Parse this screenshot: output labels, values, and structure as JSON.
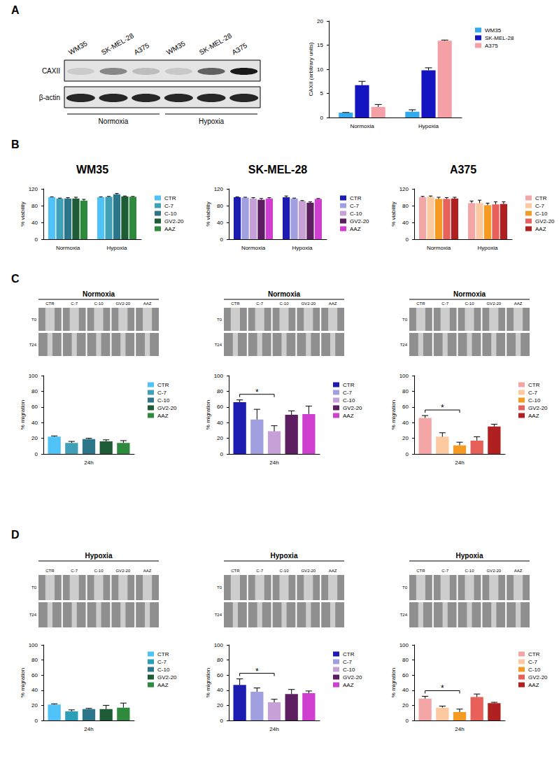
{
  "panel_labels": [
    "A",
    "B",
    "C",
    "D"
  ],
  "blot": {
    "lanes": [
      "WM35",
      "SK-MEL-28",
      "A375",
      "WM35",
      "SK-MEL-28",
      "A375"
    ],
    "rows": [
      "CAXII",
      "β-actin"
    ],
    "groups": [
      "Normoxia",
      "Hypoxia"
    ]
  },
  "wound_images": [
    {
      "title": "Normoxia",
      "columns": [
        "CTR",
        "C-7",
        "C-10",
        "GV2-20",
        "AAZ"
      ],
      "rows": [
        "T0",
        "T24"
      ]
    },
    {
      "title": "Normoxia",
      "columns": [
        "CTR",
        "C-7",
        "C-10",
        "GV2-20",
        "AAZ"
      ],
      "rows": [
        "T0",
        "T24"
      ]
    },
    {
      "title": "Normoxia",
      "columns": [
        "CTR",
        "C-7",
        "C-10",
        "GV2-20",
        "AAZ"
      ],
      "rows": [
        "T0",
        "T24"
      ]
    },
    {
      "title": "Hypoxia",
      "columns": [
        "CTR",
        "C-7",
        "C-10",
        "GV2-20",
        "AAZ"
      ],
      "rows": [
        "T0",
        "T24"
      ]
    },
    {
      "title": "Hypoxia",
      "columns": [
        "CTR",
        "C-7",
        "C-10",
        "GV2-20",
        "AAZ"
      ],
      "rows": [
        "T0",
        "T24"
      ]
    },
    {
      "title": "Hypoxia",
      "columns": [
        "CTR",
        "C-7",
        "C-10",
        "GV2-20",
        "AAZ"
      ],
      "rows": [
        "T0",
        "T24"
      ]
    }
  ],
  "chart_data": [
    {
      "type": "bar",
      "ylabel": "CAXII (arbitrary units)",
      "categories": [
        "Normoxia",
        "Hypoxia"
      ],
      "ylim": [
        0,
        20
      ],
      "yticks": [
        0,
        5,
        10,
        15,
        20
      ],
      "grid": false,
      "legend": "right",
      "series": [
        {
          "name": "WM35",
          "color": "#33aaee",
          "values": [
            1.0,
            1.2
          ],
          "errors": [
            0.05,
            0.4
          ]
        },
        {
          "name": "SK-MEL-28",
          "color": "#1414c0",
          "values": [
            6.7,
            9.8
          ],
          "errors": [
            0.8,
            0.5
          ]
        },
        {
          "name": "A375",
          "color": "#f4a0a6",
          "values": [
            2.2,
            15.9
          ],
          "errors": [
            0.5,
            0.15
          ]
        }
      ]
    },
    {
      "type": "bar",
      "title": "WM35",
      "ylabel": "% viability",
      "categories": [
        "Normoxia",
        "Hypoxia"
      ],
      "ylim": [
        0,
        120
      ],
      "yticks": [
        0,
        40,
        80,
        120
      ],
      "grid": false,
      "legend": "right",
      "series": [
        {
          "name": "CTR",
          "color": "#4fc3f7",
          "values": [
            100,
            100
          ],
          "errors": [
            1,
            1
          ]
        },
        {
          "name": "C-7",
          "color": "#3fa0b8",
          "values": [
            97,
            101
          ],
          "errors": [
            1,
            1
          ]
        },
        {
          "name": "C-10",
          "color": "#2d7588",
          "values": [
            97,
            107
          ],
          "errors": [
            2,
            2
          ]
        },
        {
          "name": "GV2-20",
          "color": "#1d5c34",
          "values": [
            97,
            102
          ],
          "errors": [
            3,
            1
          ]
        },
        {
          "name": "AAZ",
          "color": "#2e8b3e",
          "values": [
            92,
            101
          ],
          "errors": [
            3,
            1
          ]
        }
      ]
    },
    {
      "type": "bar",
      "title": "SK-MEL-28",
      "ylabel": "% viability",
      "categories": [
        "Normoxia",
        "Hypoxia"
      ],
      "ylim": [
        0,
        120
      ],
      "yticks": [
        0,
        40,
        80,
        120
      ],
      "grid": false,
      "legend": "right",
      "series": [
        {
          "name": "CTR",
          "color": "#1c1cb0",
          "values": [
            100,
            100
          ],
          "errors": [
            1,
            3
          ]
        },
        {
          "name": "C-7",
          "color": "#a0a0e0",
          "values": [
            99,
            97
          ],
          "errors": [
            1,
            1
          ]
        },
        {
          "name": "C-10",
          "color": "#c8a0d8",
          "values": [
            97,
            91
          ],
          "errors": [
            2,
            1
          ]
        },
        {
          "name": "GV2-20",
          "color": "#5c1e60",
          "values": [
            94,
            87
          ],
          "errors": [
            3,
            2
          ]
        },
        {
          "name": "AAZ",
          "color": "#d040d0",
          "values": [
            97,
            96
          ],
          "errors": [
            2,
            1
          ]
        }
      ]
    },
    {
      "type": "bar",
      "title": "A375",
      "ylabel": "% viability",
      "categories": [
        "Normoxia",
        "Hypoxia"
      ],
      "ylim": [
        0,
        120
      ],
      "yticks": [
        0,
        40,
        80,
        120
      ],
      "grid": false,
      "legend": "right",
      "series": [
        {
          "name": "CTR",
          "color": "#f4a6a6",
          "values": [
            100,
            86
          ],
          "errors": [
            2,
            5
          ]
        },
        {
          "name": "C-7",
          "color": "#fdc9a0",
          "values": [
            101,
            86
          ],
          "errors": [
            2,
            7
          ]
        },
        {
          "name": "C-10",
          "color": "#f59a23",
          "values": [
            96,
            81
          ],
          "errors": [
            4,
            5
          ]
        },
        {
          "name": "GV2-20",
          "color": "#e8605a",
          "values": [
            96,
            83
          ],
          "errors": [
            3,
            6
          ]
        },
        {
          "name": "AAZ",
          "color": "#b02020",
          "values": [
            97,
            84
          ],
          "errors": [
            3,
            5
          ]
        }
      ]
    },
    {
      "type": "bar",
      "ylabel": "% migration",
      "categories": [
        "24h"
      ],
      "ylim": [
        0,
        100
      ],
      "yticks": [
        0,
        20,
        40,
        60,
        80,
        100
      ],
      "grid": false,
      "legend": "right",
      "series": [
        {
          "name": "CTR",
          "color": "#4fc3f7",
          "values": [
            22
          ],
          "errors": [
            1
          ]
        },
        {
          "name": "C-7",
          "color": "#3fa0b8",
          "values": [
            14
          ],
          "errors": [
            2
          ]
        },
        {
          "name": "C-10",
          "color": "#2d7588",
          "values": [
            19
          ],
          "errors": [
            1
          ]
        },
        {
          "name": "GV2-20",
          "color": "#1d5c34",
          "values": [
            16
          ],
          "errors": [
            2
          ]
        },
        {
          "name": "AAZ",
          "color": "#2e8b3e",
          "values": [
            14
          ],
          "errors": [
            3
          ]
        }
      ]
    },
    {
      "type": "bar",
      "ylabel": "% migration",
      "categories": [
        "24h"
      ],
      "ylim": [
        0,
        100
      ],
      "yticks": [
        0,
        20,
        40,
        60,
        80,
        100
      ],
      "grid": false,
      "legend": "right",
      "series": [
        {
          "name": "CTR",
          "color": "#1c1cb0",
          "values": [
            66
          ],
          "errors": [
            3
          ]
        },
        {
          "name": "C-7",
          "color": "#a0a0e0",
          "values": [
            44
          ],
          "errors": [
            13
          ]
        },
        {
          "name": "C-10",
          "color": "#c8a0d8",
          "values": [
            29
          ],
          "errors": [
            7
          ]
        },
        {
          "name": "GV2-20",
          "color": "#5c1e60",
          "values": [
            50
          ],
          "errors": [
            5
          ]
        },
        {
          "name": "AAZ",
          "color": "#d040d0",
          "values": [
            51
          ],
          "errors": [
            10
          ]
        }
      ],
      "significance": [
        {
          "category": "24h",
          "between": [
            "CTR",
            "C-10"
          ],
          "label": "*"
        }
      ]
    },
    {
      "type": "bar",
      "ylabel": "% migration",
      "categories": [
        "24h"
      ],
      "ylim": [
        0,
        100
      ],
      "yticks": [
        0,
        20,
        40,
        60,
        80,
        100
      ],
      "grid": false,
      "legend": "right",
      "series": [
        {
          "name": "CTR",
          "color": "#f4a6a6",
          "values": [
            46
          ],
          "errors": [
            3
          ]
        },
        {
          "name": "C-7",
          "color": "#fdc9a0",
          "values": [
            22
          ],
          "errors": [
            5
          ]
        },
        {
          "name": "C-10",
          "color": "#f59a23",
          "values": [
            11
          ],
          "errors": [
            4
          ]
        },
        {
          "name": "GV2-20",
          "color": "#e8605a",
          "values": [
            17
          ],
          "errors": [
            5
          ]
        },
        {
          "name": "AAZ",
          "color": "#b02020",
          "values": [
            35
          ],
          "errors": [
            3
          ]
        }
      ],
      "significance": [
        {
          "category": "24h",
          "between": [
            "CTR",
            "C-10"
          ],
          "label": "*"
        }
      ]
    },
    {
      "type": "bar",
      "ylabel": "% migration",
      "categories": [
        "24h"
      ],
      "ylim": [
        0,
        100
      ],
      "yticks": [
        0,
        20,
        40,
        60,
        80,
        100
      ],
      "grid": false,
      "legend": "right",
      "series": [
        {
          "name": "CTR",
          "color": "#4fc3f7",
          "values": [
            21
          ],
          "errors": [
            1
          ]
        },
        {
          "name": "C-7",
          "color": "#2aa0b8",
          "values": [
            12
          ],
          "errors": [
            2
          ]
        },
        {
          "name": "C-10",
          "color": "#2d7588",
          "values": [
            15
          ],
          "errors": [
            1
          ]
        },
        {
          "name": "GV2-20",
          "color": "#1d5c34",
          "values": [
            15
          ],
          "errors": [
            5
          ]
        },
        {
          "name": "AAZ",
          "color": "#2e8b3e",
          "values": [
            17
          ],
          "errors": [
            6
          ]
        }
      ]
    },
    {
      "type": "bar",
      "ylabel": "% migration",
      "categories": [
        "24h"
      ],
      "ylim": [
        0,
        100
      ],
      "yticks": [
        0,
        20,
        40,
        60,
        80,
        100
      ],
      "grid": false,
      "legend": "right",
      "series": [
        {
          "name": "CTR",
          "color": "#1c1cb0",
          "values": [
            47
          ],
          "errors": [
            8
          ]
        },
        {
          "name": "C-7",
          "color": "#a0a0e0",
          "values": [
            38
          ],
          "errors": [
            5
          ]
        },
        {
          "name": "C-10",
          "color": "#c8a0d8",
          "values": [
            24
          ],
          "errors": [
            4
          ]
        },
        {
          "name": "GV2-20",
          "color": "#5c1e60",
          "values": [
            35
          ],
          "errors": [
            6
          ]
        },
        {
          "name": "AAZ",
          "color": "#d040d0",
          "values": [
            36
          ],
          "errors": [
            3
          ]
        }
      ],
      "significance": [
        {
          "category": "24h",
          "between": [
            "CTR",
            "C-10"
          ],
          "label": "*"
        }
      ]
    },
    {
      "type": "bar",
      "ylabel": "% migration",
      "categories": [
        "24h"
      ],
      "ylim": [
        0,
        100
      ],
      "yticks": [
        0,
        20,
        40,
        60,
        80,
        100
      ],
      "grid": false,
      "legend": "right",
      "series": [
        {
          "name": "CTR",
          "color": "#f4a6a6",
          "values": [
            29
          ],
          "errors": [
            3
          ]
        },
        {
          "name": "C-7",
          "color": "#fdc9a0",
          "values": [
            17
          ],
          "errors": [
            2
          ]
        },
        {
          "name": "C-10",
          "color": "#f59a23",
          "values": [
            11
          ],
          "errors": [
            4
          ]
        },
        {
          "name": "GV2-20",
          "color": "#e8605a",
          "values": [
            31
          ],
          "errors": [
            4
          ]
        },
        {
          "name": "AAZ",
          "color": "#b02020",
          "values": [
            23
          ],
          "errors": [
            1
          ]
        }
      ],
      "significance": [
        {
          "category": "24h",
          "between": [
            "CTR",
            "C-10"
          ],
          "label": "*"
        }
      ]
    }
  ]
}
